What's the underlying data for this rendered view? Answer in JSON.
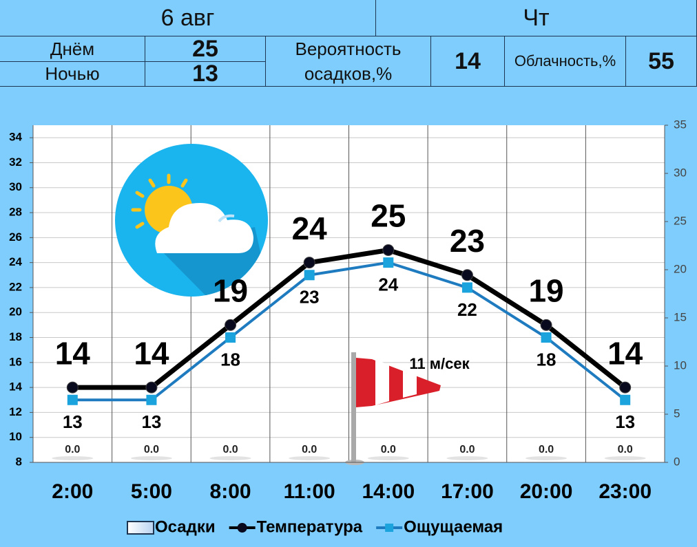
{
  "header": {
    "date": "6 авг",
    "weekday": "Чт",
    "day_label": "Днём",
    "day_value": 25,
    "night_label": "Ночью",
    "night_value": 13,
    "precip_label": "Вероятность осадков,%",
    "precip_value": 14,
    "cloud_label": "Облачность,%",
    "cloud_value": 55
  },
  "chart_data": {
    "type": "line",
    "categories": [
      "2:00",
      "5:00",
      "8:00",
      "11:00",
      "14:00",
      "17:00",
      "20:00",
      "23:00"
    ],
    "ylim": [
      8,
      35
    ],
    "yticks": [
      8,
      10,
      12,
      14,
      16,
      18,
      20,
      22,
      24,
      26,
      28,
      30,
      32,
      34
    ],
    "y2lim": [
      0,
      35
    ],
    "y2ticks": [
      0,
      5,
      10,
      15,
      20,
      25,
      30,
      35
    ],
    "grid": true,
    "legend": "bottom",
    "series": [
      {
        "name": "Осадки",
        "type": "bar",
        "axis": "y2",
        "color": "#dde9f7",
        "values": [
          0,
          0,
          0,
          0,
          0,
          0,
          0,
          0
        ],
        "value_labels": [
          "0.0",
          "0.0",
          "0.0",
          "0.0",
          "0.0",
          "0.0",
          "0.0",
          "0.0"
        ]
      },
      {
        "name": "Температура",
        "color": "#000000",
        "marker": "circle",
        "values": [
          14,
          14,
          19,
          24,
          25,
          23,
          19,
          14
        ]
      },
      {
        "name": "Ощущаемая",
        "color": "#1f7bbf",
        "marker": "square",
        "values": [
          13,
          13,
          18,
          23,
          24,
          22,
          18,
          13
        ]
      }
    ],
    "annotations": [
      "11 м/сек"
    ]
  }
}
